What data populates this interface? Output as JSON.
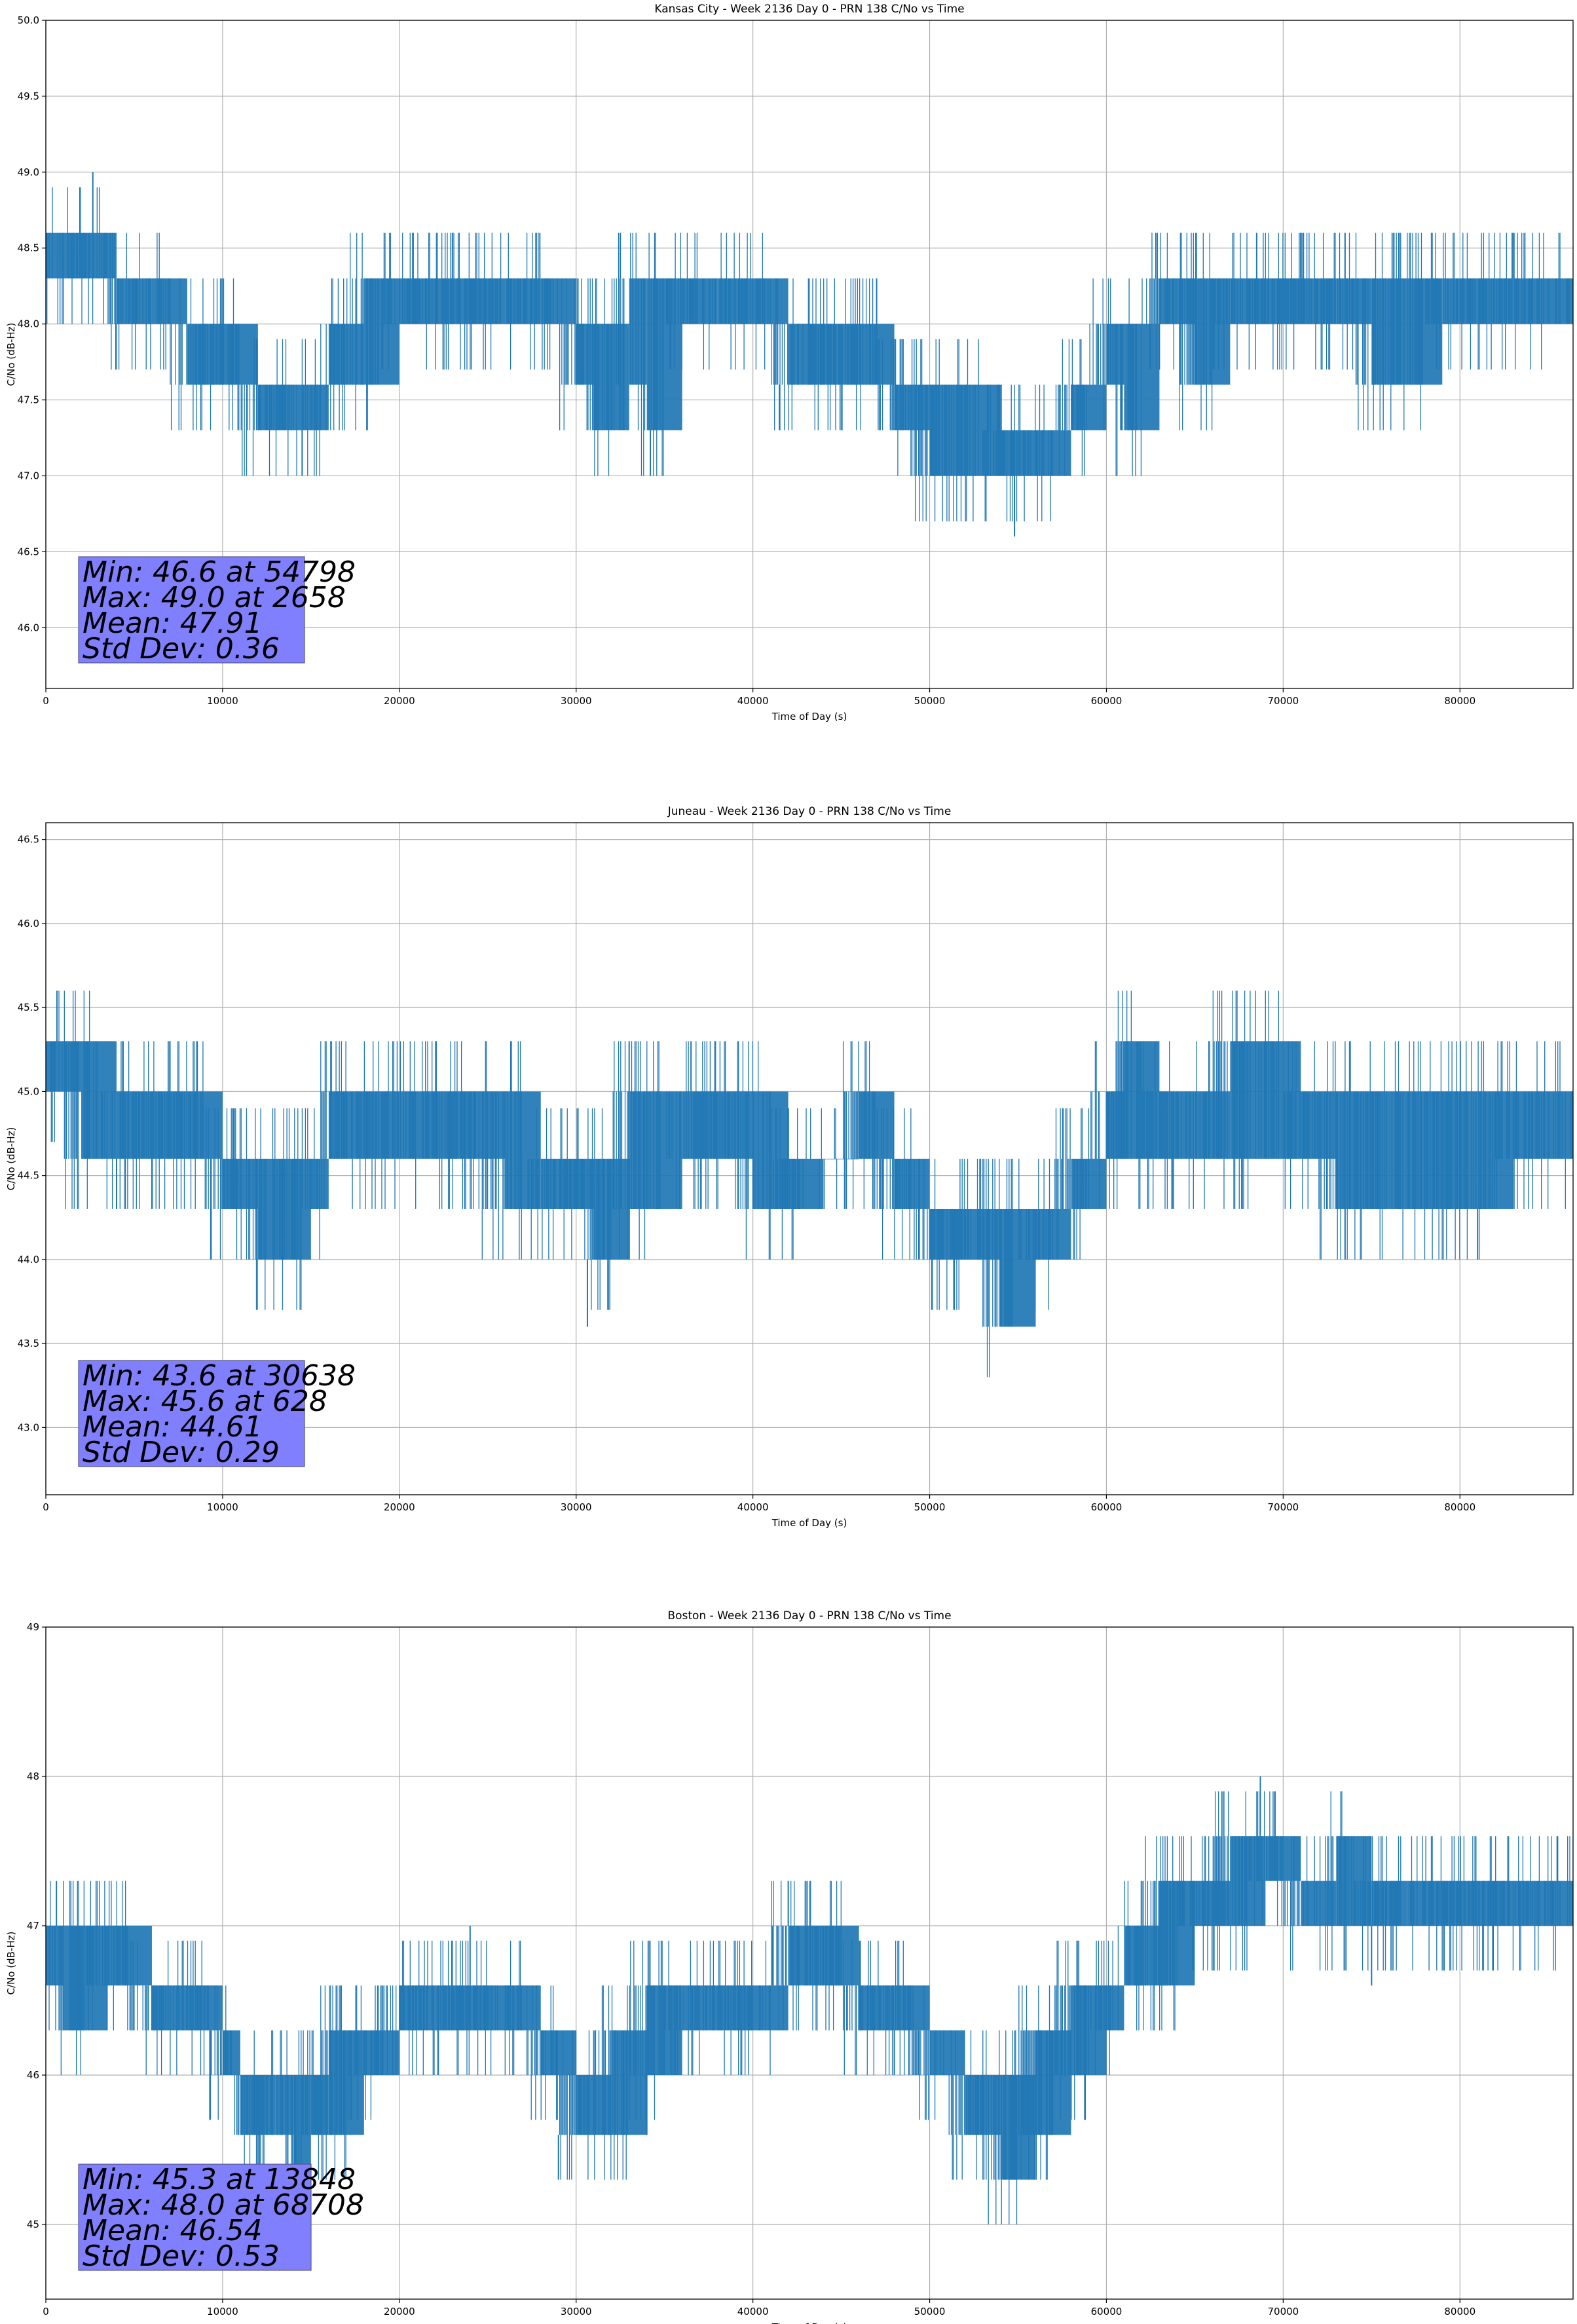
{
  "colors": {
    "series": "#1f77b4",
    "grid": "#b0b0b0",
    "statbox_fill": "#8080ff",
    "statbox_edge": "#555588"
  },
  "chart_data": [
    {
      "type": "line",
      "title": "Kansas City - Week 2136 Day 0 - PRN 138 C/No vs Time",
      "xlabel": "Time of Day (s)",
      "ylabel": "C/No (dB-Hz)",
      "xlim": [
        0,
        86400
      ],
      "ylim": [
        45.6,
        50.0
      ],
      "xticks": [
        0,
        10000,
        20000,
        30000,
        40000,
        50000,
        60000,
        70000,
        80000
      ],
      "yticks": [
        46.0,
        46.5,
        47.0,
        47.5,
        48.0,
        48.5,
        49.0,
        49.5,
        50.0
      ],
      "ytick_decimals": 1,
      "grid": true,
      "stats": [
        "Min: 46.6 at 54798",
        "Max: 49.0 at 2658",
        "Mean: 47.91",
        "Std Dev: 0.36"
      ],
      "series": [
        {
          "name": "C/No",
          "x": [
            0,
            3000,
            4000,
            6000,
            8000,
            10000,
            12000,
            14000,
            15000,
            16000,
            18000,
            20000,
            23000,
            26000,
            28000,
            30000,
            31000,
            33000,
            34000,
            36000,
            38000,
            40000,
            42000,
            44000,
            46000,
            48000,
            50000,
            52000,
            54000,
            56000,
            58000,
            60000,
            61000,
            63000,
            65000,
            67000,
            69000,
            71000,
            73000,
            75000,
            77000,
            79000,
            81000,
            83000,
            86400
          ],
          "low": [
            48.3,
            48.3,
            48.0,
            48.0,
            47.6,
            47.6,
            47.3,
            47.3,
            47.3,
            47.6,
            47.6,
            48.0,
            48.0,
            48.0,
            48.0,
            47.6,
            47.3,
            47.6,
            47.3,
            48.0,
            48.0,
            48.0,
            47.6,
            47.6,
            47.6,
            47.3,
            47.0,
            47.0,
            47.0,
            47.0,
            47.3,
            47.6,
            47.3,
            48.0,
            47.6,
            48.0,
            48.0,
            48.0,
            48.0,
            47.6,
            47.6,
            48.0,
            48.0,
            48.0,
            48.0
          ],
          "high": [
            48.6,
            48.6,
            48.3,
            48.3,
            48.0,
            48.0,
            47.6,
            47.6,
            47.6,
            48.0,
            48.3,
            48.3,
            48.3,
            48.3,
            48.3,
            48.0,
            48.0,
            48.3,
            48.3,
            48.3,
            48.3,
            48.3,
            48.0,
            48.0,
            48.0,
            47.6,
            47.6,
            47.6,
            47.3,
            47.3,
            47.6,
            48.0,
            48.0,
            48.3,
            48.3,
            48.3,
            48.3,
            48.3,
            48.3,
            48.3,
            48.3,
            48.3,
            48.3,
            48.3,
            48.3
          ],
          "spikes": [
            [
              2658,
              49.0
            ],
            [
              14500,
              47.0
            ],
            [
              23000,
              48.6
            ],
            [
              32500,
              48.6
            ],
            [
              34200,
              47.0
            ],
            [
              41500,
              47.3
            ],
            [
              47000,
              48.3
            ],
            [
              54798,
              46.6
            ],
            [
              62800,
              48.6
            ],
            [
              68500,
              48.6
            ],
            [
              73500,
              48.6
            ],
            [
              83000,
              48.6
            ]
          ]
        }
      ]
    },
    {
      "type": "line",
      "title": "Juneau - Week 2136 Day 0 - PRN 138 C/No vs Time",
      "xlabel": "Time of Day (s)",
      "ylabel": "C/No (dB-Hz)",
      "xlim": [
        0,
        86400
      ],
      "ylim": [
        42.6,
        46.6
      ],
      "xticks": [
        0,
        10000,
        20000,
        30000,
        40000,
        50000,
        60000,
        70000,
        80000
      ],
      "yticks": [
        43.0,
        43.5,
        44.0,
        44.5,
        45.0,
        45.5,
        46.0,
        46.5
      ],
      "ytick_decimals": 1,
      "grid": true,
      "stats": [
        "Min: 43.6 at 30638",
        "Max: 45.6 at 628",
        "Mean: 44.61",
        "Std Dev: 0.29"
      ],
      "series": [
        {
          "name": "C/No",
          "x": [
            0,
            2000,
            4000,
            6000,
            8000,
            10000,
            12000,
            14000,
            15000,
            16000,
            18000,
            20000,
            23000,
            26000,
            28000,
            30000,
            31000,
            33000,
            34000,
            36000,
            38000,
            40000,
            42000,
            44000,
            46000,
            48000,
            50000,
            52000,
            54000,
            56000,
            58000,
            60000,
            61000,
            63000,
            65000,
            67000,
            69000,
            71000,
            73000,
            75000,
            77000,
            79000,
            81000,
            83000,
            86400
          ],
          "low": [
            45.0,
            44.6,
            44.6,
            44.6,
            44.6,
            44.3,
            44.0,
            44.0,
            44.3,
            44.6,
            44.6,
            44.6,
            44.6,
            44.3,
            44.3,
            44.3,
            44.0,
            44.3,
            44.3,
            44.6,
            44.6,
            44.3,
            44.3,
            44.6,
            44.6,
            44.3,
            44.0,
            44.0,
            43.6,
            44.0,
            44.3,
            44.6,
            44.6,
            44.6,
            44.6,
            44.6,
            44.6,
            44.6,
            44.3,
            44.3,
            44.3,
            44.3,
            44.3,
            44.6,
            44.6
          ],
          "high": [
            45.3,
            45.3,
            45.0,
            45.0,
            45.0,
            44.6,
            44.6,
            44.6,
            44.6,
            45.0,
            45.0,
            45.0,
            45.0,
            45.0,
            44.6,
            44.6,
            44.6,
            45.0,
            45.0,
            45.0,
            45.0,
            45.0,
            44.6,
            44.6,
            45.0,
            44.6,
            44.3,
            44.3,
            44.3,
            44.3,
            44.6,
            45.0,
            45.3,
            45.0,
            45.0,
            45.3,
            45.3,
            45.0,
            45.0,
            45.0,
            45.0,
            45.0,
            45.0,
            45.0,
            45.0
          ],
          "spikes": [
            [
              628,
              45.6
            ],
            [
              4000,
              44.3
            ],
            [
              30638,
              43.6
            ],
            [
              33000,
              45.3
            ],
            [
              36500,
              45.3
            ],
            [
              53000,
              43.6
            ],
            [
              69000,
              45.3
            ],
            [
              73500,
              44.0
            ],
            [
              81000,
              44.0
            ]
          ]
        }
      ]
    },
    {
      "type": "line",
      "title": "Boston - Week 2136 Day 0 - PRN 138 C/No vs Time",
      "xlabel": "Time of Day (s)",
      "ylabel": "C/No (dB-Hz)",
      "xlim": [
        0,
        86400
      ],
      "ylim": [
        44.5,
        49.0
      ],
      "xticks": [
        0,
        10000,
        20000,
        30000,
        40000,
        50000,
        60000,
        70000,
        80000
      ],
      "yticks": [
        45,
        46,
        47,
        48,
        49
      ],
      "ytick_decimals": 0,
      "grid": true,
      "stats": [
        "Min: 45.3 at 13848",
        "Max: 48.0 at 68708",
        "Mean: 46.54",
        "Std Dev: 0.53"
      ],
      "series": [
        {
          "name": "C/No",
          "x": [
            0,
            1000,
            3500,
            6000,
            8500,
            10000,
            11000,
            13000,
            14000,
            15000,
            16000,
            18000,
            20000,
            22000,
            24000,
            26000,
            28000,
            30000,
            32000,
            34000,
            36000,
            38000,
            40000,
            42000,
            44000,
            46000,
            48000,
            50000,
            52000,
            54000,
            56000,
            58000,
            60000,
            61000,
            63000,
            65000,
            67000,
            69000,
            71000,
            73000,
            75000,
            77000,
            79000,
            81000,
            83000,
            86400
          ],
          "low": [
            46.6,
            46.3,
            46.6,
            46.3,
            46.3,
            46.0,
            45.6,
            45.6,
            45.3,
            45.6,
            45.6,
            46.0,
            46.3,
            46.3,
            46.3,
            46.3,
            46.0,
            45.6,
            45.6,
            46.0,
            46.3,
            46.3,
            46.3,
            46.6,
            46.6,
            46.3,
            46.3,
            46.0,
            45.6,
            45.3,
            45.6,
            46.0,
            46.3,
            46.6,
            46.6,
            47.0,
            47.0,
            47.3,
            47.0,
            47.0,
            47.0,
            47.0,
            47.0,
            47.0,
            47.0,
            47.0
          ],
          "high": [
            47.0,
            47.0,
            47.0,
            46.6,
            46.6,
            46.3,
            46.0,
            46.0,
            46.0,
            46.0,
            46.3,
            46.3,
            46.6,
            46.6,
            46.6,
            46.6,
            46.3,
            46.0,
            46.3,
            46.6,
            46.6,
            46.6,
            46.6,
            47.0,
            47.0,
            46.6,
            46.6,
            46.3,
            46.0,
            46.0,
            46.3,
            46.6,
            46.6,
            47.0,
            47.3,
            47.3,
            47.6,
            47.6,
            47.3,
            47.6,
            47.3,
            47.3,
            47.3,
            47.3,
            47.3,
            47.3
          ],
          "spikes": [
            [
              600,
              47.3
            ],
            [
              13848,
              45.3
            ],
            [
              24000,
              47.0
            ],
            [
              29000,
              45.3
            ],
            [
              34000,
              45.6
            ],
            [
              42000,
              47.3
            ],
            [
              48000,
              46.0
            ],
            [
              54500,
              45.3
            ],
            [
              68708,
              48.0
            ],
            [
              75000,
              46.6
            ],
            [
              85500,
              47.6
            ]
          ]
        }
      ]
    }
  ]
}
